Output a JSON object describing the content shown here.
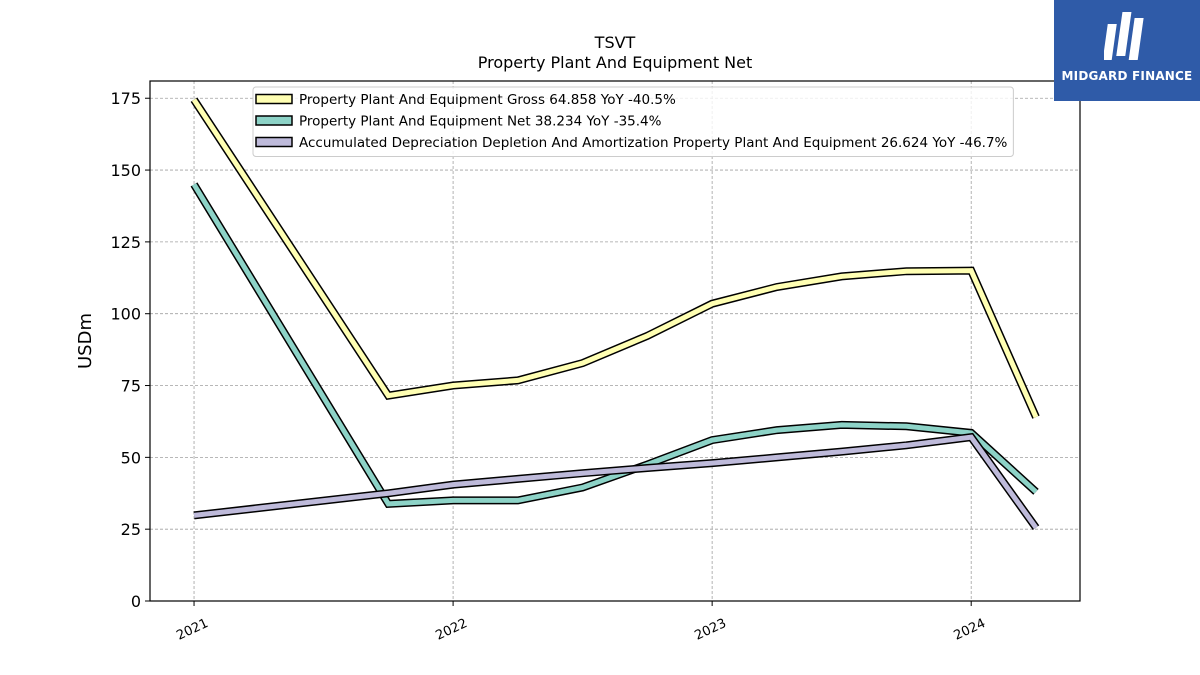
{
  "title": "TSVT",
  "subtitle": "Property Plant And Equipment Net",
  "logo": {
    "text": "MIDGARD FINANCE",
    "icon": "midgard-logo-icon",
    "color": "#2f5ba8"
  },
  "chart_data": {
    "type": "line",
    "ylabel": "USDm",
    "xlabel": "",
    "ylim": [
      0,
      181
    ],
    "xlim": [
      2020.83,
      2024.42
    ],
    "yticks": [
      0,
      25,
      50,
      75,
      100,
      125,
      150,
      175
    ],
    "xticks": [
      {
        "value": 2021,
        "label": "2021"
      },
      {
        "value": 2022,
        "label": "2022"
      },
      {
        "value": 2023,
        "label": "2023"
      },
      {
        "value": 2024,
        "label": "2024"
      }
    ],
    "grid": true,
    "legend_position": "top-center",
    "series": [
      {
        "name": "Property Plant And Equipment Gross",
        "legend": "Property Plant And Equipment Gross  64.858 YoY -40.5%",
        "color": "#ffffb3",
        "points": [
          [
            2021.0,
            174.5
          ],
          [
            2021.75,
            71.5
          ],
          [
            2022.0,
            75.0
          ],
          [
            2022.25,
            76.8
          ],
          [
            2022.5,
            82.8
          ],
          [
            2022.75,
            92.3
          ],
          [
            2023.0,
            103.5
          ],
          [
            2023.25,
            109.3
          ],
          [
            2023.5,
            113.0
          ],
          [
            2023.75,
            114.8
          ],
          [
            2024.0,
            115.0
          ],
          [
            2024.25,
            64.0
          ]
        ]
      },
      {
        "name": "Property Plant And Equipment Net",
        "legend": "Property Plant And Equipment Net  38.234 YoY -35.4%",
        "color": "#8dd3c7",
        "points": [
          [
            2021.0,
            145.0
          ],
          [
            2021.75,
            33.8
          ],
          [
            2022.0,
            35.0
          ],
          [
            2022.25,
            35.0
          ],
          [
            2022.5,
            39.5
          ],
          [
            2022.75,
            47.5
          ],
          [
            2023.0,
            56.0
          ],
          [
            2023.25,
            59.5
          ],
          [
            2023.5,
            61.3
          ],
          [
            2023.75,
            60.8
          ],
          [
            2024.0,
            58.5
          ],
          [
            2024.25,
            38.0
          ]
        ]
      },
      {
        "name": "Accumulated Depreciation Depletion And Amortization Property Plant And Equipment",
        "legend": "Accumulated Depreciation Depletion And Amortization Property Plant And Equipment  26.624 YoY -46.7%",
        "color": "#bebada",
        "points": [
          [
            2021.0,
            29.8
          ],
          [
            2021.75,
            37.5
          ],
          [
            2022.0,
            40.5
          ],
          [
            2022.25,
            42.5
          ],
          [
            2022.5,
            44.5
          ],
          [
            2022.75,
            46.3
          ],
          [
            2023.0,
            48.0
          ],
          [
            2023.25,
            50.0
          ],
          [
            2023.5,
            52.0
          ],
          [
            2023.75,
            54.2
          ],
          [
            2024.0,
            57.0
          ],
          [
            2024.25,
            25.5
          ]
        ]
      }
    ]
  }
}
